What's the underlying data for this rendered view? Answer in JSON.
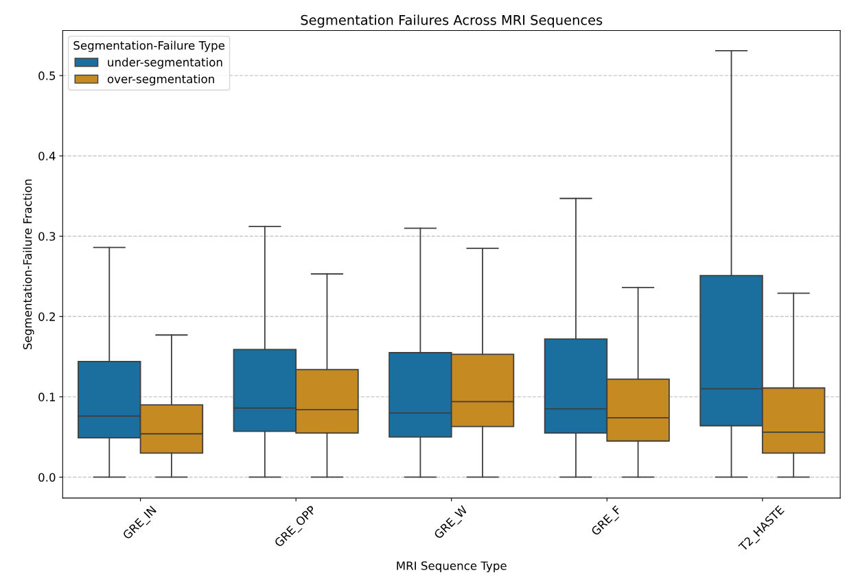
{
  "chart_data": {
    "type": "box",
    "title": "Segmentation Failures Across MRI Sequences",
    "xlabel": "MRI Sequence Type",
    "ylabel": "Segmentation-Failure Fraction",
    "legend_title": "Segmentation-Failure Type",
    "categories": [
      "GRE_IN",
      "GRE_OPP",
      "GRE_W",
      "GRE_F",
      "T2_HASTE"
    ],
    "series": [
      {
        "name": "under-segmentation",
        "color": "#1a6f9e",
        "boxes": [
          {
            "low": 0,
            "q1": 0.049,
            "median": 0.076,
            "q3": 0.144,
            "high": 0.286
          },
          {
            "low": 0,
            "q1": 0.057,
            "median": 0.086,
            "q3": 0.159,
            "high": 0.312
          },
          {
            "low": 0,
            "q1": 0.05,
            "median": 0.08,
            "q3": 0.155,
            "high": 0.31
          },
          {
            "low": 0,
            "q1": 0.055,
            "median": 0.085,
            "q3": 0.172,
            "high": 0.347
          },
          {
            "low": 0,
            "q1": 0.064,
            "median": 0.11,
            "q3": 0.251,
            "high": 0.531
          }
        ]
      },
      {
        "name": "over-segmentation",
        "color": "#c68a22",
        "boxes": [
          {
            "low": 0,
            "q1": 0.03,
            "median": 0.054,
            "q3": 0.09,
            "high": 0.177
          },
          {
            "low": 0,
            "q1": 0.055,
            "median": 0.084,
            "q3": 0.134,
            "high": 0.253
          },
          {
            "low": 0,
            "q1": 0.063,
            "median": 0.094,
            "q3": 0.153,
            "high": 0.285
          },
          {
            "low": 0,
            "q1": 0.045,
            "median": 0.074,
            "q3": 0.122,
            "high": 0.236
          },
          {
            "low": 0,
            "q1": 0.03,
            "median": 0.056,
            "q3": 0.111,
            "high": 0.229
          }
        ]
      }
    ],
    "ylim": [
      -0.026,
      0.556
    ],
    "yticks": [
      {
        "value": 0,
        "label": "0.0"
      },
      0.1,
      0.2,
      0.3,
      0.4,
      0.5
    ],
    "grid": "y",
    "legend": "top left"
  }
}
